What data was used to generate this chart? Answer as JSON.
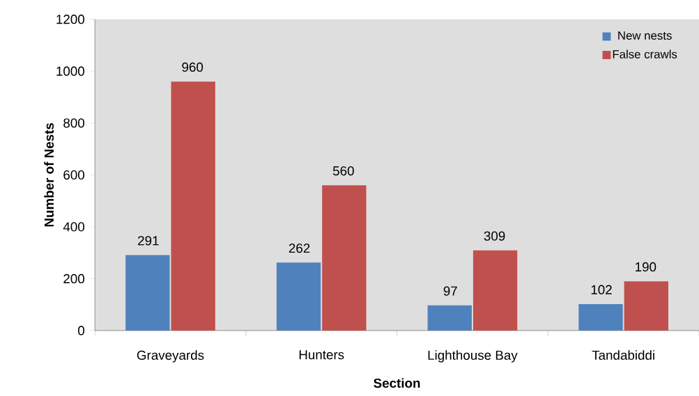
{
  "chart_data": {
    "type": "bar",
    "xlabel": "Section",
    "ylabel": "Number of Nests",
    "categories": [
      "Graveyards",
      "Hunters",
      "Lighthouse Bay",
      "Tandabiddi"
    ],
    "series": [
      {
        "name": "New nests",
        "color": "#4f81bd",
        "values": [
          291,
          262,
          97,
          102
        ]
      },
      {
        "name": "False crawls",
        "color": "#c0504d",
        "values": [
          960,
          560,
          309,
          190
        ]
      }
    ],
    "ylim": [
      0,
      1200
    ],
    "yticks": [
      0,
      200,
      400,
      600,
      800,
      1000,
      1200
    ],
    "grid": false,
    "legend": "top right",
    "data_labels": true
  }
}
